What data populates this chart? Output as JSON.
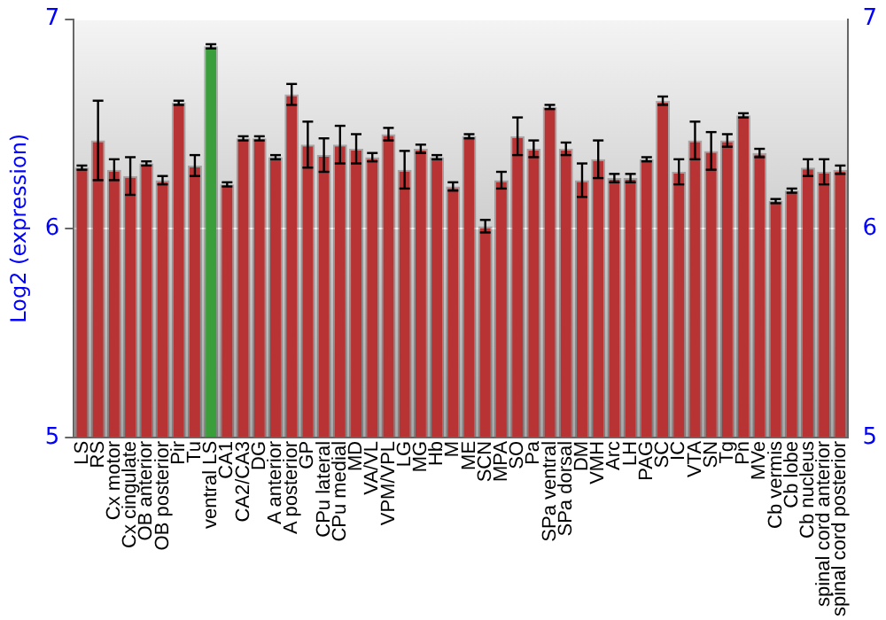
{
  "chart_data": {
    "type": "bar",
    "ylabel": "Log2 (expression)",
    "categories": [
      "LS",
      "RS",
      "Cx motor",
      "Cx cingulate",
      "OB anterior",
      "OB posterior",
      "Pir",
      "Tu",
      "ventral LS",
      "CA1",
      "CA2/CA3",
      "DG",
      "A anterior",
      "A posterior",
      "GP",
      "CPu lateral",
      "CPu medial",
      "MD",
      "VA/VL",
      "VPM/VPL",
      "LG",
      "MG",
      "Hb",
      "M",
      "ME",
      "SCN",
      "MPA",
      "SO",
      "Pa",
      "SPa ventral",
      "SPa dorsal",
      "DM",
      "VMH",
      "Arc",
      "LH",
      "PAG",
      "SC",
      "IC",
      "VTA",
      "SN",
      "Tg",
      "Pn",
      "MVe",
      "Cb vermis",
      "Cb lobe",
      "Cb nucleus",
      "spinal cord anterior",
      "spinal cord posterior"
    ],
    "values": [
      6.29,
      6.42,
      6.28,
      6.25,
      6.31,
      6.23,
      6.6,
      6.3,
      6.87,
      6.21,
      6.43,
      6.43,
      6.34,
      6.64,
      6.4,
      6.35,
      6.4,
      6.38,
      6.34,
      6.45,
      6.28,
      6.38,
      6.34,
      6.2,
      6.44,
      6.01,
      6.23,
      6.44,
      6.38,
      6.58,
      6.38,
      6.23,
      6.33,
      6.24,
      6.24,
      6.33,
      6.61,
      6.27,
      6.42,
      6.37,
      6.42,
      6.54,
      6.36,
      6.13,
      6.18,
      6.29,
      6.27,
      6.28
    ],
    "errors": [
      0.01,
      0.19,
      0.05,
      0.09,
      0.01,
      0.02,
      0.01,
      0.05,
      0.01,
      0.01,
      0.01,
      0.01,
      0.01,
      0.05,
      0.11,
      0.08,
      0.09,
      0.07,
      0.02,
      0.03,
      0.09,
      0.02,
      0.01,
      0.02,
      0.01,
      0.03,
      0.04,
      0.09,
      0.04,
      0.01,
      0.03,
      0.08,
      0.09,
      0.02,
      0.02,
      0.01,
      0.02,
      0.06,
      0.09,
      0.09,
      0.03,
      0.01,
      0.02,
      0.01,
      0.01,
      0.04,
      0.06,
      0.02
    ],
    "colors": [
      "#b83333",
      "#b83333",
      "#b83333",
      "#b83333",
      "#b83333",
      "#b83333",
      "#b83333",
      "#b83333",
      "#3a9e3a",
      "#b83333",
      "#b83333",
      "#b83333",
      "#b83333",
      "#b83333",
      "#b83333",
      "#b83333",
      "#b83333",
      "#b83333",
      "#b83333",
      "#b83333",
      "#b83333",
      "#b83333",
      "#b83333",
      "#b83333",
      "#b83333",
      "#b83333",
      "#b83333",
      "#b83333",
      "#b83333",
      "#b83333",
      "#b83333",
      "#b83333",
      "#b83333",
      "#b83333",
      "#b83333",
      "#b83333",
      "#b83333",
      "#b83333",
      "#b83333",
      "#b83333",
      "#b83333",
      "#b83333",
      "#b83333",
      "#b83333",
      "#b83333",
      "#b83333",
      "#b83333",
      "#b83333"
    ],
    "ylim": [
      5,
      7
    ],
    "yticks": [
      5,
      6,
      7
    ],
    "y2lim": [
      5,
      7
    ],
    "y2ticks": [
      5,
      6,
      7
    ],
    "grid": "y",
    "legend": false
  }
}
